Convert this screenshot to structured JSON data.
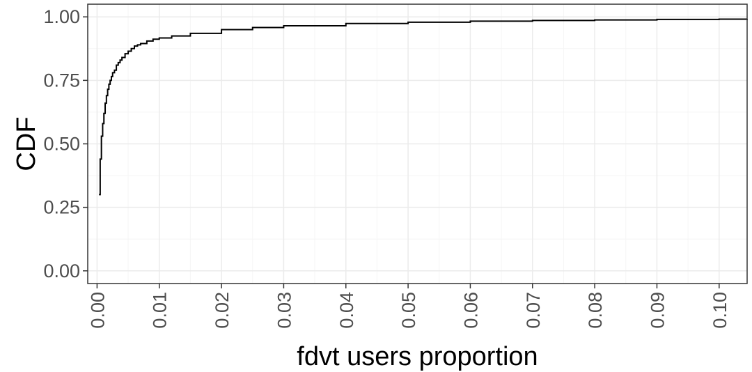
{
  "chart_data": {
    "type": "line",
    "title": "",
    "xlabel": "fdvt users proportion",
    "ylabel": "CDF",
    "xlim": [
      -0.0015,
      0.1045
    ],
    "ylim": [
      -0.05,
      1.05
    ],
    "x_ticks": [
      "0.00",
      "0.01",
      "0.02",
      "0.03",
      "0.04",
      "0.05",
      "0.06",
      "0.07",
      "0.08",
      "0.09",
      "0.10"
    ],
    "y_ticks": [
      "0.00",
      "0.25",
      "0.50",
      "0.75",
      "1.00"
    ],
    "grid": true,
    "legend": "none",
    "series": [
      {
        "x": [
          0.0003,
          0.0005,
          0.0007,
          0.0009,
          0.0011,
          0.0013,
          0.0015,
          0.0017,
          0.0019,
          0.0021,
          0.0023,
          0.0025,
          0.0028,
          0.0031,
          0.0034,
          0.0037,
          0.004,
          0.0045,
          0.005,
          0.0055,
          0.006,
          0.0065,
          0.007,
          0.008,
          0.009,
          0.01,
          0.012,
          0.015,
          0.02,
          0.025,
          0.03,
          0.04,
          0.05,
          0.06,
          0.07,
          0.08,
          0.09,
          0.1,
          0.1045
        ],
        "y": [
          0.3,
          0.44,
          0.53,
          0.58,
          0.62,
          0.66,
          0.69,
          0.715,
          0.735,
          0.75,
          0.765,
          0.78,
          0.79,
          0.81,
          0.82,
          0.83,
          0.84,
          0.855,
          0.865,
          0.875,
          0.885,
          0.89,
          0.895,
          0.905,
          0.912,
          0.917,
          0.925,
          0.935,
          0.95,
          0.958,
          0.965,
          0.974,
          0.979,
          0.983,
          0.986,
          0.988,
          0.99,
          0.991,
          0.992
        ],
        "color": "#000000"
      }
    ],
    "colors": {
      "panel_border": "#333333",
      "grid_major": "#ebebeb",
      "grid_minor": "#f5f5f5",
      "tick_label": "#4d4d4d"
    }
  }
}
